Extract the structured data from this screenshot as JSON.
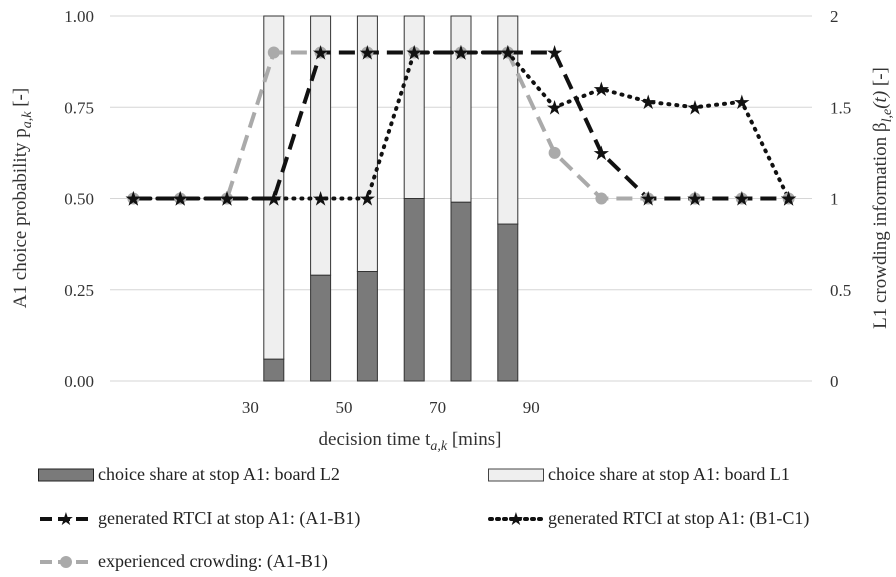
{
  "chart_data": {
    "type": "bar+line",
    "x_ticks": [
      "30",
      "50",
      "70",
      "90"
    ],
    "y_left_ticks": [
      "0.00",
      "0.25",
      "0.50",
      "0.75",
      "1.00"
    ],
    "y_right_ticks": [
      "0",
      "0.5",
      "1",
      "1.5",
      "2"
    ],
    "ylim_left": [
      0,
      1
    ],
    "ylim_right": [
      0,
      2
    ],
    "xlabel": "decision time t",
    "xlabel_sub": "a,k",
    "xlabel_unit": " [mins]",
    "ylabel_left": "A1 choice probability p",
    "ylabel_left_sub": "a,k",
    "ylabel_left_unit": " [-]",
    "ylabel_right": "L1 crowding information β",
    "ylabel_right_sub": "l,e",
    "ylabel_right_func": "(t)",
    "ylabel_right_unit": " [-]",
    "bar_categories": [
      35,
      45,
      55,
      65,
      75,
      85
    ],
    "bars": [
      {
        "name": "choice share at stop A1: board L2",
        "color": "#7a7a7a",
        "values": [
          0.06,
          0.29,
          0.3,
          0.5,
          0.49,
          0.43
        ]
      },
      {
        "name": "choice share at stop A1: board L1",
        "color": "#efefef",
        "values": [
          0.94,
          0.71,
          0.7,
          0.5,
          0.51,
          0.57
        ]
      }
    ],
    "line_x": [
      5,
      15,
      25,
      35,
      45,
      55,
      65,
      75,
      85,
      95,
      105,
      115,
      125,
      135,
      145
    ],
    "series": [
      {
        "name": "generated RTCI at stop A1: (A1-B1)",
        "style": "dashed-bold",
        "color": "#111111",
        "marker": "star",
        "values": [
          1,
          1,
          1,
          1,
          1.8,
          1.8,
          1.8,
          1.8,
          1.8,
          1.8,
          1.25,
          1,
          1,
          1,
          1
        ]
      },
      {
        "name": "generated RTCI at stop A1: (B1-C1)",
        "style": "dotted",
        "color": "#111111",
        "marker": "star",
        "values": [
          1,
          1,
          1,
          1,
          1,
          1,
          1.8,
          1.8,
          1.8,
          1.5,
          1.6,
          1.53,
          1.5,
          1.53,
          1
        ]
      },
      {
        "name": "experienced crowding: (A1-B1)",
        "style": "dashed-gray",
        "color": "#aaaaaa",
        "marker": "circle",
        "values": [
          1,
          1,
          1,
          1.8,
          1.8,
          1.8,
          1.8,
          1.8,
          1.8,
          1.25,
          1,
          1,
          1,
          1,
          1
        ]
      }
    ]
  }
}
